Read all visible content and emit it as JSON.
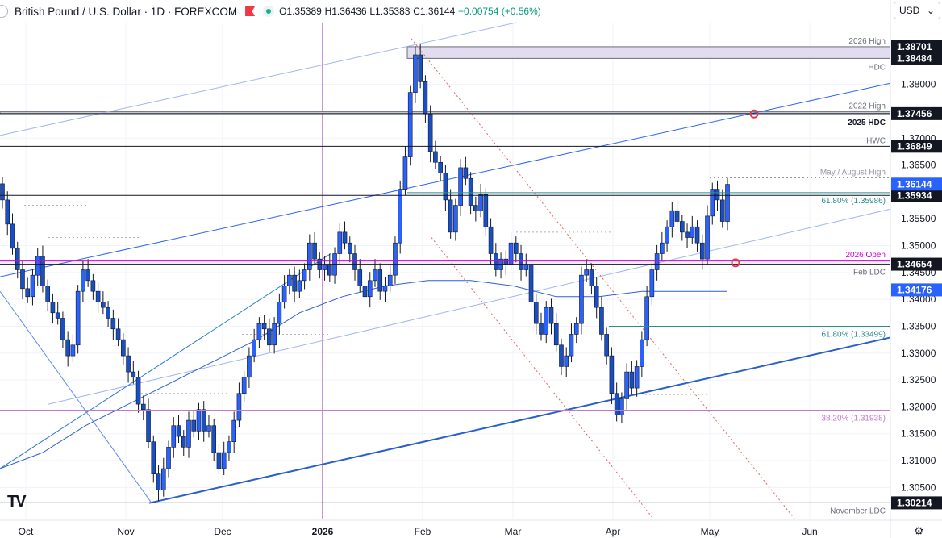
{
  "header": {
    "symbol_title": "British Pound / U.S. Dollar · 1D · FOREXCOM",
    "open": "O1.35389",
    "high": "H1.36436",
    "low": "L1.35383",
    "close": "C1.36144",
    "change": "+0.00754 (+0.56%)"
  },
  "currency_selector": {
    "value": "USD",
    "icon": "chevron-down-icon"
  },
  "logo": "TV",
  "settings_icon": "gear-icon",
  "colors": {
    "up": "#2962ff",
    "down": "#2962ff",
    "accent_magenta": "#d100d1",
    "teal": "#2e8b8b",
    "fib_violet": "#c27ac9",
    "marker": "#e53950"
  },
  "chart_data": {
    "type": "candlestick",
    "price_range": [
      1.2992,
      1.3915
    ],
    "y_ticks": [
      1.305,
      1.31,
      1.315,
      1.32,
      1.325,
      1.33,
      1.335,
      1.34,
      1.345,
      1.35,
      1.355,
      1.365,
      1.37,
      1.38
    ],
    "y_tick_labels": [
      "1.30500",
      "1.31000",
      "1.31500",
      "1.32000",
      "1.32500",
      "1.33000",
      "1.33500",
      "1.34000",
      "1.34500",
      "1.35000",
      "1.35500",
      "1.36500",
      "1.37000",
      "1.38000"
    ],
    "x_labels": [
      {
        "label": "Oct",
        "date": "2025-10-01"
      },
      {
        "label": "Nov",
        "date": "2025-11-01"
      },
      {
        "label": "Dec",
        "date": "2025-12-01"
      },
      {
        "label": "2026",
        "date": "2026-01-01"
      },
      {
        "label": "Feb",
        "date": "2026-02-01"
      },
      {
        "label": "Mar",
        "date": "2026-03-01"
      },
      {
        "label": "Apr",
        "date": "2026-04-01"
      },
      {
        "label": "May",
        "date": "2026-05-01"
      },
      {
        "label": "Jun",
        "date": "2026-06-01"
      }
    ],
    "date_range": [
      "2025-09-23",
      "2026-06-26"
    ],
    "closes": [
      1.3585,
      1.354,
      1.3495,
      1.3455,
      1.342,
      1.3405,
      1.3445,
      1.348,
      1.3425,
      1.3395,
      1.3375,
      1.3365,
      1.3325,
      1.3295,
      1.3315,
      1.3415,
      1.3455,
      1.3435,
      1.3415,
      1.3395,
      1.3385,
      1.3365,
      1.3345,
      1.3325,
      1.3295,
      1.3265,
      1.3255,
      1.3205,
      1.3195,
      1.3135,
      1.3075,
      1.3045,
      1.3085,
      1.3125,
      1.3165,
      1.3145,
      1.3125,
      1.3175,
      1.3155,
      1.3195,
      1.3155,
      1.3165,
      1.3115,
      1.3085,
      1.3115,
      1.3135,
      1.3175,
      1.3225,
      1.3255,
      1.3295,
      1.3325,
      1.3355,
      1.3345,
      1.3315,
      1.3355,
      1.3395,
      1.3425,
      1.3445,
      1.3415,
      1.3435,
      1.3455,
      1.3505,
      1.3475,
      1.3455,
      1.3465,
      1.3445,
      1.3485,
      1.3525,
      1.3505,
      1.3485,
      1.3455,
      1.3425,
      1.3405,
      1.3435,
      1.3455,
      1.3415,
      1.3425,
      1.3445,
      1.3505,
      1.3605,
      1.3665,
      1.3785,
      1.3855,
      1.3805,
      1.3745,
      1.3675,
      1.3655,
      1.3635,
      1.3585,
      1.3525,
      1.3575,
      1.3645,
      1.3625,
      1.3575,
      1.3565,
      1.3595,
      1.3535,
      1.3485,
      1.3455,
      1.3475,
      1.3465,
      1.3505,
      1.3485,
      1.3455,
      1.3465,
      1.3395,
      1.3355,
      1.3335,
      1.3385,
      1.3355,
      1.3315,
      1.3275,
      1.3295,
      1.3335,
      1.3355,
      1.3445,
      1.3455,
      1.3425,
      1.3385,
      1.3335,
      1.3295,
      1.3225,
      1.3185,
      1.3215,
      1.3265,
      1.3235,
      1.3275,
      1.3325,
      1.3405,
      1.3455,
      1.3485,
      1.3505,
      1.3535,
      1.3565,
      1.3545,
      1.3525,
      1.3515,
      1.3535,
      1.3505,
      1.3475,
      1.3555,
      1.3605,
      1.3585,
      1.3545,
      1.3614
    ],
    "moving_average": {
      "values": [
        1.3085,
        1.3115,
        1.3165,
        1.3205,
        1.3245,
        1.3285,
        1.3325,
        1.3375,
        1.3405,
        1.3425,
        1.3435,
        1.3435,
        1.3425,
        1.3405,
        1.3405,
        1.3415,
        1.3415,
        1.3415
      ]
    },
    "levels": [
      {
        "label": "2026 High",
        "price": 1.38701,
        "color": "#131722",
        "tag": "1.38701"
      },
      {
        "label": "HDC",
        "price": 1.38484,
        "color": "#131722",
        "tag": "1.38484"
      },
      {
        "label": "2022 High",
        "price": 1.3749,
        "color": "#131722"
      },
      {
        "label": "2025 HDC",
        "price": 1.37456,
        "color": "#131722",
        "tag": "1.37456"
      },
      {
        "label": "HWC",
        "price": 1.36849,
        "color": "#131722",
        "tag": "1.36849"
      },
      {
        "label": "May / August High",
        "price": 1.3626,
        "color": "#9598a1"
      },
      {
        "label": "61.80% (1.35986)",
        "price": 1.35986,
        "color": "#2e8b8b"
      },
      {
        "label": "",
        "price": 1.35934,
        "color": "#131722",
        "tag": "1.35934"
      },
      {
        "label": "2026 Open",
        "price": 1.3472,
        "color": "#d100d1"
      },
      {
        "label": "Feb LDC",
        "price": 1.34654,
        "color": "#131722",
        "tag": "1.34654"
      },
      {
        "label": "61.80% (1.33499)",
        "price": 1.33499,
        "color": "#2e8b8b"
      },
      {
        "label": "38.20% (1.31938)",
        "price": 1.31938,
        "color": "#c27ac9"
      },
      {
        "label": "November LDC",
        "price": 1.30214,
        "color": "#131722",
        "tag": "1.30214"
      }
    ],
    "last_price_tag": "1.36144",
    "ma_price_tag": "1.34176"
  }
}
